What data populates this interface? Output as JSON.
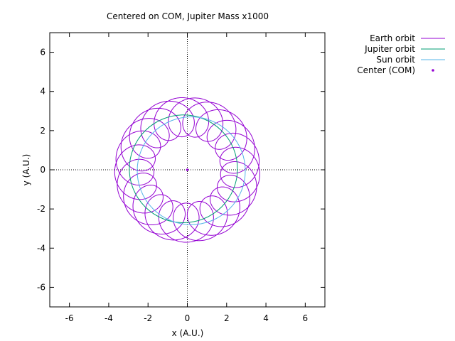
{
  "chart_data": {
    "type": "line",
    "title": "Centered on COM, Jupiter Mass x1000",
    "xlabel": "x (A.U.)",
    "ylabel": "y (A.U.)",
    "xlim": [
      -7,
      7
    ],
    "ylim": [
      -7,
      7
    ],
    "xticks": [
      -6,
      -4,
      -2,
      0,
      2,
      4,
      6
    ],
    "yticks": [
      -6,
      -4,
      -2,
      0,
      2,
      4,
      6
    ],
    "zero_axes": true,
    "legend_position": "outside-top-right",
    "series": [
      {
        "name": "Earth orbit",
        "color": "#9400d3",
        "kind": "epicycle",
        "sun_orbit_radius": 2.7,
        "sun_orbit_center": [
          0,
          0
        ],
        "earth_orbit_radius": 1.0,
        "sun_phase_deg": 200,
        "earth_phase_deg": 200,
        "earth_to_sun_angular_ratio": 11.5,
        "sun_revolutions": 2,
        "direction": "counterclockwise"
      },
      {
        "name": "Jupiter orbit",
        "color": "#009e73",
        "kind": "circle",
        "center": [
          -0.2,
          0.05
        ],
        "radius": 2.75
      },
      {
        "name": "Sun orbit",
        "color": "#56b4e9",
        "kind": "circle",
        "center": [
          0.2,
          -0.05
        ],
        "radius": 2.75
      },
      {
        "name": "Center (COM)",
        "color": "#9400d3",
        "kind": "point",
        "x": [
          0
        ],
        "y": [
          0
        ]
      }
    ]
  }
}
